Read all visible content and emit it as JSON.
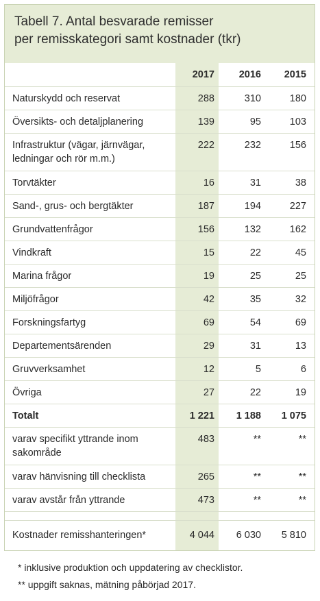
{
  "title": {
    "line1": "Tabell 7. Antal besvarade remisser",
    "line2": "per remisskategori samt kostnader (tkr)"
  },
  "columns": [
    "2017",
    "2016",
    "2015"
  ],
  "rows": [
    {
      "label": "Naturskydd och reservat",
      "v2017": "288",
      "v2016": "310",
      "v2015": "180"
    },
    {
      "label": "Översikts- och detaljplanering",
      "v2017": "139",
      "v2016": "95",
      "v2015": "103"
    },
    {
      "label": "Infrastruktur (vägar, järnvägar, ledningar och rör m.m.)",
      "v2017": "222",
      "v2016": "232",
      "v2015": "156"
    },
    {
      "label": "Torvtäkter",
      "v2017": "16",
      "v2016": "31",
      "v2015": "38"
    },
    {
      "label": "Sand-, grus- och bergtäkter",
      "v2017": "187",
      "v2016": "194",
      "v2015": "227"
    },
    {
      "label": "Grundvattenfrågor",
      "v2017": "156",
      "v2016": "132",
      "v2015": "162"
    },
    {
      "label": "Vindkraft",
      "v2017": "15",
      "v2016": "22",
      "v2015": "45"
    },
    {
      "label": "Marina frågor",
      "v2017": "19",
      "v2016": "25",
      "v2015": "25"
    },
    {
      "label": "Miljöfrågor",
      "v2017": "42",
      "v2016": "35",
      "v2015": "32"
    },
    {
      "label": "Forskningsfartyg",
      "v2017": "69",
      "v2016": "54",
      "v2015": "69"
    },
    {
      "label": "Departementsärenden",
      "v2017": "29",
      "v2016": "31",
      "v2015": "13"
    },
    {
      "label": "Gruvverksamhet",
      "v2017": "12",
      "v2016": "5",
      "v2015": "6"
    },
    {
      "label": "Övriga",
      "v2017": "27",
      "v2016": "22",
      "v2015": "19"
    }
  ],
  "total": {
    "label": "Totalt",
    "v2017": "1 221",
    "v2016": "1 188",
    "v2015": "1 075"
  },
  "sub_rows": [
    {
      "label": "varav specifikt yttrande inom sakområde",
      "v2017": "483",
      "v2016": "**",
      "v2015": "**"
    },
    {
      "label": "varav hänvisning till checklista",
      "v2017": "265",
      "v2016": "**",
      "v2015": "**"
    },
    {
      "label": "varav avstår från yttrande",
      "v2017": "473",
      "v2016": "**",
      "v2015": "**"
    }
  ],
  "costs": {
    "label": "Kostnader remisshanteringen*",
    "v2017": "4 044",
    "v2016": "6 030",
    "v2015": "5 810"
  },
  "footnotes": [
    "* inklusive produktion och uppdatering av checklistor.",
    "** uppgift saknas, mätning påbörjad 2017."
  ],
  "colors": {
    "accent_bg": "#e6ecd6",
    "border": "#c9d3b4"
  }
}
